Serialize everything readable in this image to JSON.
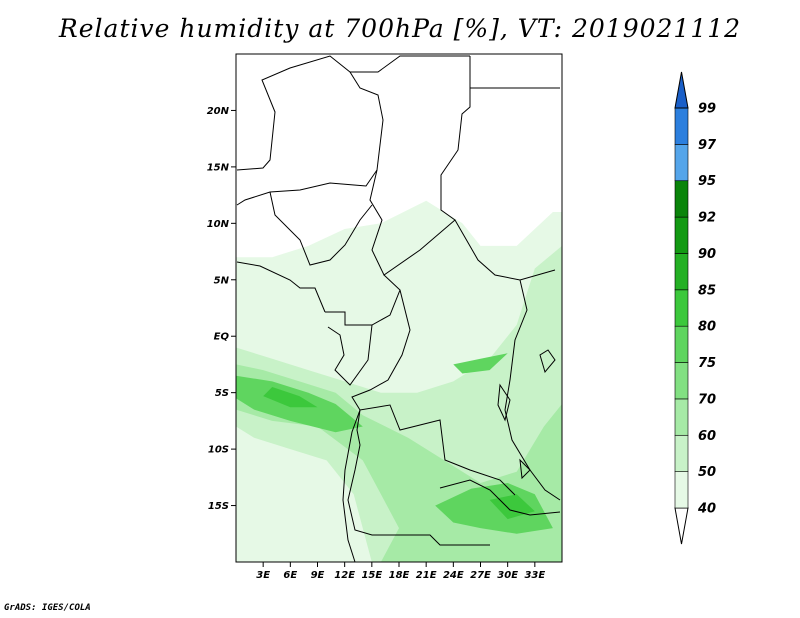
{
  "title": "Relative humidity at 700hPa [%], VT: 2019021112",
  "footer": "GrADS: IGES/COLA",
  "map": {
    "lon_range": [
      0,
      36
    ],
    "lat_range": [
      -20,
      25
    ],
    "lat_ticks": [
      {
        "value": 20,
        "label": "20N"
      },
      {
        "value": 15,
        "label": "15N"
      },
      {
        "value": 10,
        "label": "10N"
      },
      {
        "value": 5,
        "label": "5N"
      },
      {
        "value": 0,
        "label": "EQ"
      },
      {
        "value": -5,
        "label": "5S"
      },
      {
        "value": -10,
        "label": "10S"
      },
      {
        "value": -15,
        "label": "15S"
      }
    ],
    "lon_ticks": [
      {
        "value": 3,
        "label": "3E"
      },
      {
        "value": 6,
        "label": "6E"
      },
      {
        "value": 9,
        "label": "9E"
      },
      {
        "value": 12,
        "label": "12E"
      },
      {
        "value": 15,
        "label": "15E"
      },
      {
        "value": 18,
        "label": "18E"
      },
      {
        "value": 21,
        "label": "21E"
      },
      {
        "value": 24,
        "label": "24E"
      },
      {
        "value": 27,
        "label": "27E"
      },
      {
        "value": 30,
        "label": "30E"
      },
      {
        "value": 33,
        "label": "33E"
      }
    ]
  },
  "colorbar": {
    "levels": [
      "40",
      "50",
      "60",
      "70",
      "75",
      "80",
      "85",
      "90",
      "92",
      "95",
      "97",
      "99"
    ],
    "colors": [
      "#ffffff",
      "#e6f9e6",
      "#c8f2c8",
      "#a6eaa6",
      "#82e082",
      "#5fd55f",
      "#3cc83c",
      "#24b024",
      "#139a13",
      "#0a840a",
      "#55a5ea",
      "#2c7fde",
      "#1a5fc8"
    ]
  },
  "humidity_fields": [
    {
      "level": 50,
      "color": "#e6f9e6",
      "lon_lat": [
        [
          0,
          7
        ],
        [
          4,
          7
        ],
        [
          8,
          8
        ],
        [
          12,
          9.5
        ],
        [
          16,
          10
        ],
        [
          21,
          12
        ],
        [
          25,
          10
        ],
        [
          27,
          8
        ],
        [
          31,
          8
        ],
        [
          35,
          11
        ],
        [
          36,
          11
        ],
        [
          36,
          -20
        ],
        [
          0,
          -20
        ]
      ]
    },
    {
      "level": 60,
      "color": "#c8f2c8",
      "lon_lat": [
        [
          0,
          -1
        ],
        [
          4,
          -2
        ],
        [
          8,
          -3
        ],
        [
          12,
          -4
        ],
        [
          16,
          -5
        ],
        [
          20,
          -5
        ],
        [
          24,
          -4
        ],
        [
          28,
          -2
        ],
        [
          31,
          1
        ],
        [
          33,
          6
        ],
        [
          36,
          8
        ],
        [
          36,
          -20
        ],
        [
          15,
          -20
        ],
        [
          13,
          -14
        ],
        [
          10,
          -11
        ],
        [
          6,
          -10
        ],
        [
          2,
          -9
        ],
        [
          0,
          -8
        ]
      ]
    },
    {
      "level": 70,
      "color": "#a6eaa6",
      "lon_lat": [
        [
          0,
          -2.5
        ],
        [
          3,
          -3
        ],
        [
          7,
          -4
        ],
        [
          11,
          -5
        ],
        [
          14,
          -7
        ],
        [
          19,
          -9
        ],
        [
          23,
          -11
        ],
        [
          27,
          -13
        ],
        [
          31,
          -12
        ],
        [
          34,
          -8
        ],
        [
          36,
          -6
        ],
        [
          36,
          -20
        ],
        [
          16,
          -20
        ],
        [
          18,
          -17
        ],
        [
          14,
          -11
        ],
        [
          9,
          -8
        ],
        [
          4,
          -7.5
        ],
        [
          0,
          -6.5
        ]
      ]
    },
    {
      "level": 80,
      "color": "#5fd55f",
      "lon_lat": [
        [
          0,
          -3.5
        ],
        [
          4,
          -4
        ],
        [
          8,
          -5
        ],
        [
          11,
          -6
        ],
        [
          14,
          -8
        ],
        [
          11,
          -8.5
        ],
        [
          6,
          -7.5
        ],
        [
          2,
          -6.5
        ],
        [
          0,
          -5.5
        ]
      ]
    },
    {
      "level": 80,
      "color": "#5fd55f",
      "lon_lat": [
        [
          22,
          -15
        ],
        [
          26,
          -13.5
        ],
        [
          30,
          -13
        ],
        [
          33,
          -14
        ],
        [
          35,
          -17
        ],
        [
          31,
          -17.5
        ],
        [
          27,
          -17
        ],
        [
          24,
          -16.5
        ]
      ]
    },
    {
      "level": 80,
      "color": "#5fd55f",
      "lon_lat": [
        [
          24,
          -2.5
        ],
        [
          27,
          -2
        ],
        [
          30,
          -1.5
        ],
        [
          28,
          -3
        ],
        [
          25,
          -3.3
        ]
      ]
    },
    {
      "level": 85,
      "color": "#3cc83c",
      "lon_lat": [
        [
          4,
          -4.5
        ],
        [
          7,
          -5.3
        ],
        [
          9,
          -6.3
        ],
        [
          6,
          -6.3
        ],
        [
          3,
          -5.3
        ]
      ]
    },
    {
      "level": 85,
      "color": "#3cc83c",
      "lon_lat": [
        [
          28,
          -14.5
        ],
        [
          31,
          -14
        ],
        [
          33,
          -15.5
        ],
        [
          30,
          -16.2
        ]
      ]
    }
  ]
}
